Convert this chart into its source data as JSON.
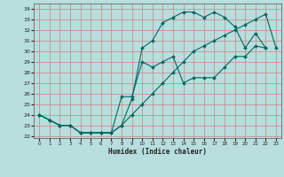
{
  "xlabel": "Humidex (Indice chaleur)",
  "background_color": "#b8dede",
  "grid_color": "#d08080",
  "line_color": "#006860",
  "xlim": [
    -0.5,
    23.5
  ],
  "ylim": [
    21.8,
    34.5
  ],
  "yticks": [
    22,
    23,
    24,
    25,
    26,
    27,
    28,
    29,
    30,
    31,
    32,
    33,
    34
  ],
  "xticks": [
    0,
    1,
    2,
    3,
    4,
    5,
    6,
    7,
    8,
    9,
    10,
    11,
    12,
    13,
    14,
    15,
    16,
    17,
    18,
    19,
    20,
    21,
    22,
    23
  ],
  "curve1_x": [
    0,
    1,
    2,
    3,
    4,
    5,
    6,
    7,
    8,
    9,
    10,
    11,
    12,
    13,
    14,
    15,
    16,
    17,
    18,
    19,
    20,
    21,
    22
  ],
  "curve1_y": [
    24.0,
    23.5,
    23.0,
    23.0,
    22.3,
    22.3,
    22.3,
    22.3,
    23.0,
    25.5,
    30.3,
    31.0,
    32.7,
    33.2,
    33.7,
    33.7,
    33.2,
    33.7,
    33.2,
    32.3,
    30.3,
    31.7,
    30.3
  ],
  "curve2_x": [
    0,
    1,
    2,
    3,
    4,
    5,
    6,
    7,
    8,
    9,
    10,
    11,
    12,
    13,
    14,
    15,
    16,
    17,
    18,
    19,
    20,
    21,
    22
  ],
  "curve2_y": [
    24.0,
    23.5,
    23.0,
    23.0,
    22.3,
    22.3,
    22.3,
    22.3,
    25.7,
    25.7,
    29.0,
    28.5,
    29.0,
    29.5,
    27.0,
    27.5,
    27.5,
    27.5,
    28.5,
    29.5,
    29.5,
    30.5,
    30.3
  ],
  "curve3_x": [
    0,
    1,
    2,
    3,
    4,
    5,
    6,
    7,
    8,
    9,
    10,
    11,
    12,
    13,
    14,
    15,
    16,
    17,
    18,
    19,
    20,
    21,
    22,
    23
  ],
  "curve3_y": [
    24.0,
    23.5,
    23.0,
    23.0,
    22.3,
    22.3,
    22.3,
    22.3,
    23.0,
    24.0,
    25.0,
    26.0,
    27.0,
    28.0,
    29.0,
    30.0,
    30.5,
    31.0,
    31.5,
    32.0,
    32.5,
    33.0,
    33.5,
    30.3
  ]
}
